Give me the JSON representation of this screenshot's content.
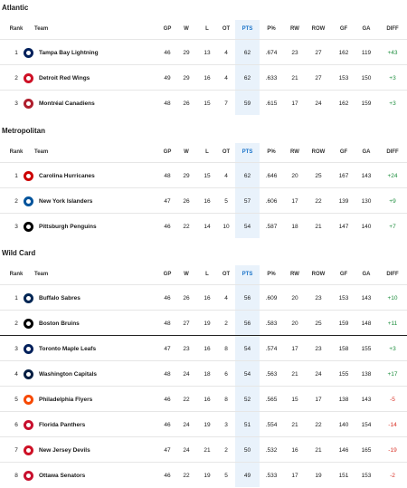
{
  "columns": {
    "rank": "Rank",
    "team": "Team",
    "gp": "GP",
    "w": "W",
    "l": "L",
    "ot": "OT",
    "pts": "PTS",
    "pct": "P%",
    "rw": "RW",
    "row": "ROW",
    "gf": "GF",
    "ga": "GA",
    "diff": "DIFF"
  },
  "colors": {
    "pts_highlight": "#e9f2fb",
    "pts_header": "#1a73c9",
    "positive": "#1e8e3e",
    "negative": "#d93025"
  },
  "sections": [
    {
      "title": "Atlantic",
      "rows": [
        {
          "rank": "1",
          "team": "Tampa Bay Lightning",
          "logo": "lightning-logo-icon",
          "gp": "46",
          "w": "29",
          "l": "13",
          "ot": "4",
          "pts": "62",
          "pct": ".674",
          "rw": "23",
          "row": "27",
          "gf": "162",
          "ga": "119",
          "diff": "+43",
          "sign": "pos"
        },
        {
          "rank": "2",
          "team": "Detroit Red Wings",
          "logo": "red-wings-logo-icon",
          "gp": "49",
          "w": "29",
          "l": "16",
          "ot": "4",
          "pts": "62",
          "pct": ".633",
          "rw": "21",
          "row": "27",
          "gf": "153",
          "ga": "150",
          "diff": "+3",
          "sign": "pos"
        },
        {
          "rank": "3",
          "team": "Montréal Canadiens",
          "logo": "canadiens-logo-icon",
          "gp": "48",
          "w": "26",
          "l": "15",
          "ot": "7",
          "pts": "59",
          "pct": ".615",
          "rw": "17",
          "row": "24",
          "gf": "162",
          "ga": "159",
          "diff": "+3",
          "sign": "pos"
        }
      ]
    },
    {
      "title": "Metropolitan",
      "rows": [
        {
          "rank": "1",
          "team": "Carolina Hurricanes",
          "logo": "hurricanes-logo-icon",
          "gp": "48",
          "w": "29",
          "l": "15",
          "ot": "4",
          "pts": "62",
          "pct": ".646",
          "rw": "20",
          "row": "25",
          "gf": "167",
          "ga": "143",
          "diff": "+24",
          "sign": "pos"
        },
        {
          "rank": "2",
          "team": "New York Islanders",
          "logo": "islanders-logo-icon",
          "gp": "47",
          "w": "26",
          "l": "16",
          "ot": "5",
          "pts": "57",
          "pct": ".606",
          "rw": "17",
          "row": "22",
          "gf": "139",
          "ga": "130",
          "diff": "+9",
          "sign": "pos"
        },
        {
          "rank": "3",
          "team": "Pittsburgh Penguins",
          "logo": "penguins-logo-icon",
          "gp": "46",
          "w": "22",
          "l": "14",
          "ot": "10",
          "pts": "54",
          "pct": ".587",
          "rw": "18",
          "row": "21",
          "gf": "147",
          "ga": "140",
          "diff": "+7",
          "sign": "pos"
        }
      ]
    },
    {
      "title": "Wild Card",
      "rows": [
        {
          "rank": "1",
          "team": "Buffalo Sabres",
          "logo": "sabres-logo-icon",
          "gp": "46",
          "w": "26",
          "l": "16",
          "ot": "4",
          "pts": "56",
          "pct": ".609",
          "rw": "20",
          "row": "23",
          "gf": "153",
          "ga": "143",
          "diff": "+10",
          "sign": "pos"
        },
        {
          "rank": "2",
          "team": "Boston Bruins",
          "logo": "bruins-logo-icon",
          "gp": "48",
          "w": "27",
          "l": "19",
          "ot": "2",
          "pts": "56",
          "pct": ".583",
          "rw": "20",
          "row": "25",
          "gf": "159",
          "ga": "148",
          "diff": "+11",
          "sign": "pos"
        },
        {
          "rank": "3",
          "team": "Toronto Maple Leafs",
          "logo": "maple-leafs-logo-icon",
          "gp": "47",
          "w": "23",
          "l": "16",
          "ot": "8",
          "pts": "54",
          "pct": ".574",
          "rw": "17",
          "row": "23",
          "gf": "158",
          "ga": "155",
          "diff": "+3",
          "sign": "pos"
        },
        {
          "rank": "4",
          "team": "Washington Capitals",
          "logo": "capitals-logo-icon",
          "gp": "48",
          "w": "24",
          "l": "18",
          "ot": "6",
          "pts": "54",
          "pct": ".563",
          "rw": "21",
          "row": "24",
          "gf": "155",
          "ga": "138",
          "diff": "+17",
          "sign": "pos"
        },
        {
          "rank": "5",
          "team": "Philadelphia Flyers",
          "logo": "flyers-logo-icon",
          "gp": "46",
          "w": "22",
          "l": "16",
          "ot": "8",
          "pts": "52",
          "pct": ".565",
          "rw": "15",
          "row": "17",
          "gf": "138",
          "ga": "143",
          "diff": "-5",
          "sign": "neg"
        },
        {
          "rank": "6",
          "team": "Florida Panthers",
          "logo": "panthers-logo-icon",
          "gp": "46",
          "w": "24",
          "l": "19",
          "ot": "3",
          "pts": "51",
          "pct": ".554",
          "rw": "21",
          "row": "22",
          "gf": "140",
          "ga": "154",
          "diff": "-14",
          "sign": "neg"
        },
        {
          "rank": "7",
          "team": "New Jersey Devils",
          "logo": "devils-logo-icon",
          "gp": "47",
          "w": "24",
          "l": "21",
          "ot": "2",
          "pts": "50",
          "pct": ".532",
          "rw": "16",
          "row": "21",
          "gf": "146",
          "ga": "165",
          "diff": "-19",
          "sign": "neg"
        },
        {
          "rank": "8",
          "team": "Ottawa Senators",
          "logo": "senators-logo-icon",
          "gp": "46",
          "w": "22",
          "l": "19",
          "ot": "5",
          "pts": "49",
          "pct": ".533",
          "rw": "17",
          "row": "19",
          "gf": "151",
          "ga": "153",
          "diff": "-2",
          "sign": "neg"
        }
      ]
    }
  ]
}
